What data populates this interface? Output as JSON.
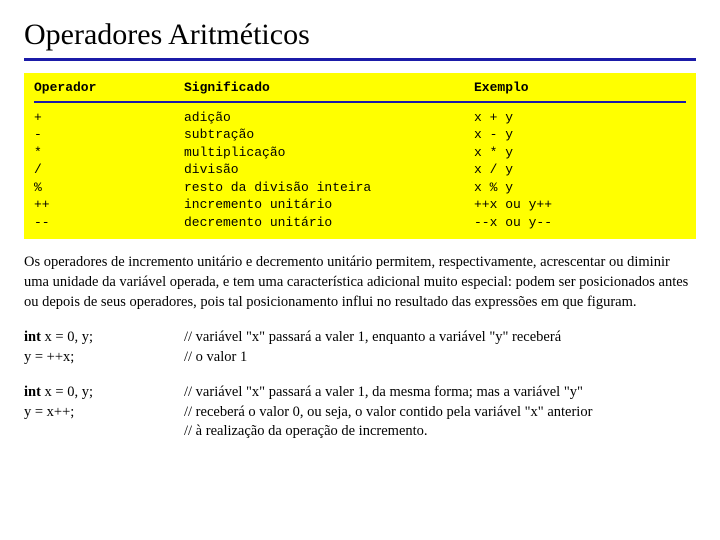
{
  "title": "Operadores Aritméticos",
  "colors": {
    "rule": "#1b1ba8",
    "table_bg": "#ffff00",
    "text": "#000000",
    "page_bg": "#ffffff"
  },
  "fonts": {
    "body": "Times New Roman",
    "mono": "Courier New",
    "title_size_pt": 30,
    "body_size_pt": 14.5,
    "mono_size_pt": 13
  },
  "table": {
    "headers": {
      "op": "Operador",
      "sig": "Significado",
      "ex": "Exemplo"
    },
    "rows": [
      {
        "op": "+",
        "sig": "adição",
        "ex": "x + y"
      },
      {
        "op": "-",
        "sig": "subtração",
        "ex": "x - y"
      },
      {
        "op": "*",
        "sig": "multiplicação",
        "ex": "x * y"
      },
      {
        "op": "/",
        "sig": "divisão",
        "ex": "x / y"
      },
      {
        "op": "%",
        "sig": "resto da divisão inteira",
        "ex": "x % y"
      },
      {
        "op": "++",
        "sig": "incremento unitário",
        "ex": "++x  ou  y++"
      },
      {
        "op": "--",
        "sig": "decremento unitário",
        "ex": "--x  ou  y--"
      }
    ]
  },
  "paragraph": "Os operadores de incremento unitário e decremento unitário permitem, respectivamente, acrescentar ou diminir uma unidade da variável operada, e tem uma característica adicional muito especial: podem ser posicionados antes ou depois de seus operadores, pois tal posicionamento influi no resultado das expressões em que figuram.",
  "examples": [
    {
      "kw": "int",
      "decl": " x = 0, y;",
      "stmt": "y = ++x;",
      "comment_lines": [
        "// variável \"x\" passará a valer 1, enquanto a variável \"y\" receberá",
        "// o valor 1"
      ]
    },
    {
      "kw": "int",
      "decl": " x = 0, y;",
      "stmt": "y = x++;",
      "comment_lines": [
        "// variável \"x\" passará a valer 1, da mesma forma; mas a variável \"y\"",
        "// receberá o valor 0, ou seja, o valor contido pela variável \"x\" anterior",
        "// à realização da operação de incremento."
      ]
    }
  ]
}
